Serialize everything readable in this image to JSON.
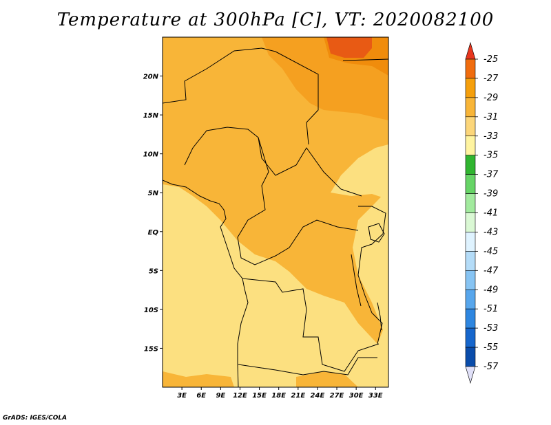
{
  "title": "Temperature at 300hPa [C], VT: 2020082100",
  "credit": "GrADS: IGES/COLA",
  "map": {
    "lon_range": [
      0,
      35
    ],
    "lat_range": [
      -20,
      25
    ],
    "lat_ticks": [
      "20N",
      "15N",
      "10N",
      "5N",
      "EQ",
      "5S",
      "10S",
      "15S"
    ],
    "lon_ticks": [
      "3E",
      "6E",
      "9E",
      "12E",
      "15E",
      "18E",
      "21E",
      "24E",
      "27E",
      "30E",
      "33E"
    ]
  },
  "colorbar": {
    "labels": [
      "-25",
      "-27",
      "-29",
      "-31",
      "-33",
      "-35",
      "-37",
      "-39",
      "-41",
      "-43",
      "-45",
      "-47",
      "-49",
      "-51",
      "-53",
      "-55",
      "-57"
    ],
    "colors": [
      "#e8361e",
      "#f06c0e",
      "#f59f0c",
      "#f8b538",
      "#fcd67a",
      "#fff4a0",
      "#30b530",
      "#66d466",
      "#a2ea9e",
      "#daf8d4",
      "#dff3ff",
      "#b4dcf8",
      "#87c4f3",
      "#57a6ec",
      "#2e86e0",
      "#1666cc",
      "#0a4caa",
      "#062a87"
    ],
    "top_tip_color": "#e8361e",
    "bottom_tip_color": "#e0e0f8"
  },
  "field_colors": {
    "c_m35": "#fff4a0",
    "c_m33": "#fce080",
    "c_m31": "#f8b538",
    "c_m29": "#f5a020",
    "c_m27": "#f08c0c",
    "c_m25": "#e85a14"
  }
}
